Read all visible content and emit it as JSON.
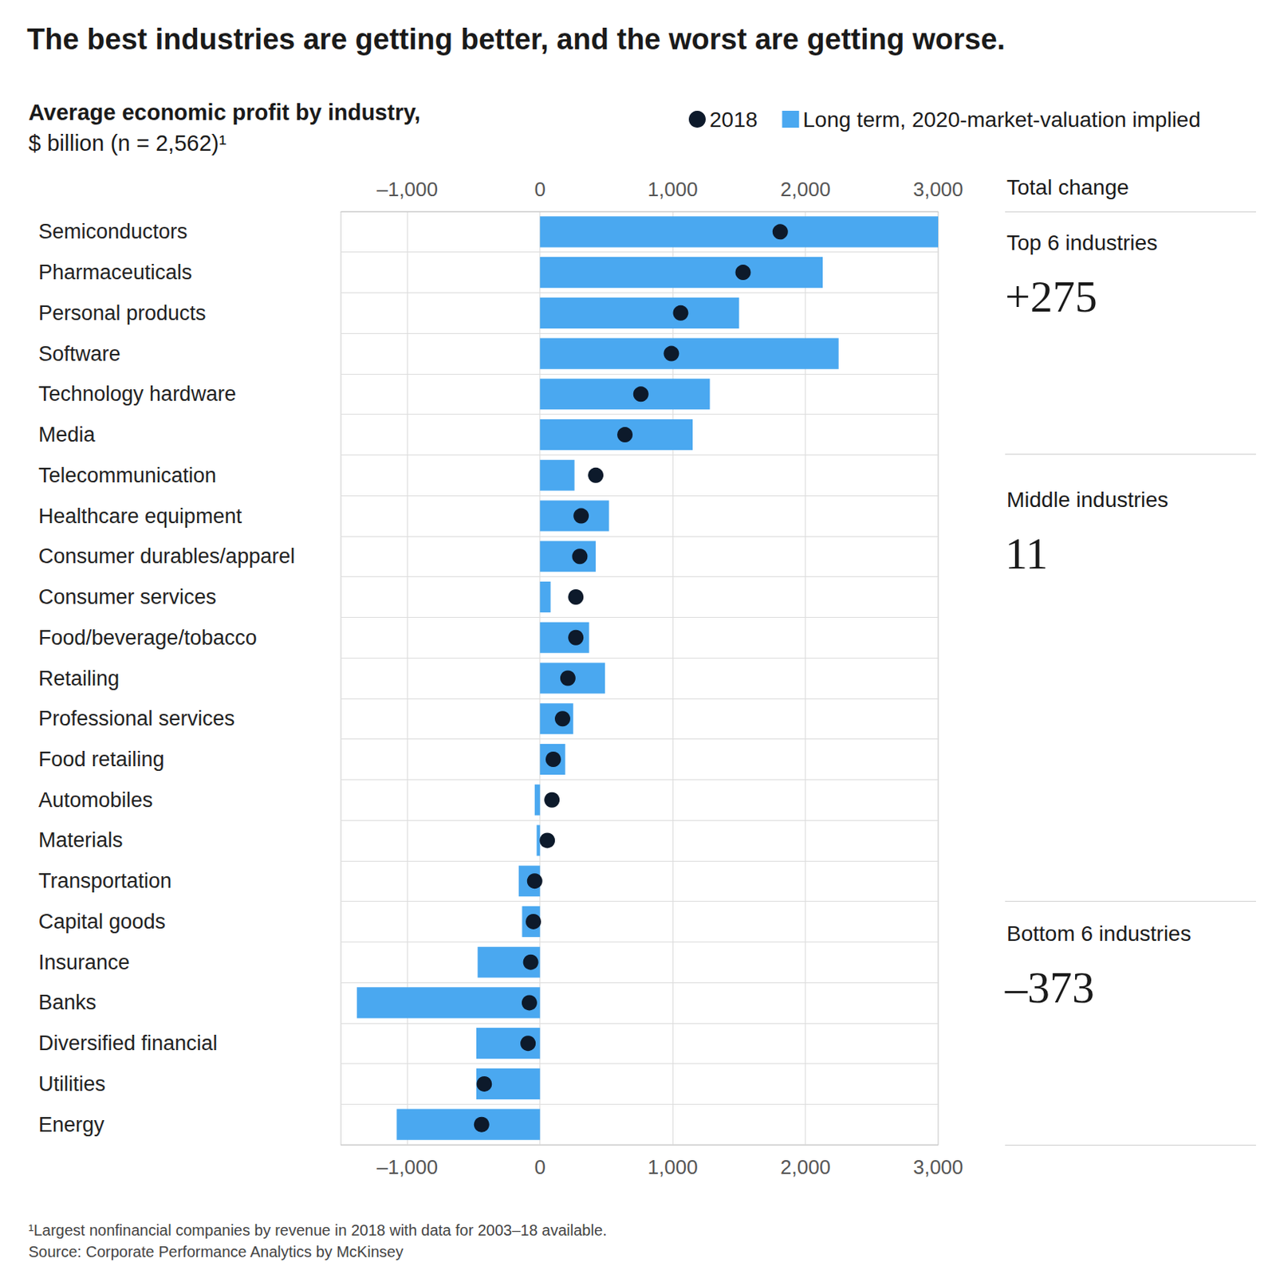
{
  "title": "The best industries are getting better, and the worst are getting worse.",
  "subtitle": "Average economic profit by industry,",
  "units": "$ billion (n = 2,562)¹",
  "annotations": {
    "header": "Total change",
    "groups": [
      {
        "label": "Top 6 industries",
        "value": "+275"
      },
      {
        "label": "Middle industries",
        "value": "11"
      },
      {
        "label": "Bottom 6 industries",
        "value": "–373"
      }
    ]
  },
  "footnotes": [
    "¹Largest nonfinancial companies by revenue in 2018 with data for 2003–18 available.",
    "Source: Corporate Performance Analytics by McKinsey"
  ],
  "chart_data": {
    "type": "bar",
    "orientation": "horizontal",
    "grid": true,
    "legend": "top-right",
    "categories": [
      "Semiconductors",
      "Pharmaceuticals",
      "Personal products",
      "Software",
      "Technology hardware",
      "Media",
      "Telecommunication",
      "Healthcare equipment",
      "Consumer durables/apparel",
      "Consumer services",
      "Food/beverage/tobacco",
      "Retailing",
      "Professional services",
      "Food retailing",
      "Automobiles",
      "Materials",
      "Transportation",
      "Capital goods",
      "Insurance",
      "Banks",
      "Diversified financial",
      "Utilities",
      "Energy"
    ],
    "series": [
      {
        "name": "2018",
        "type": "scatter",
        "marker": "circle",
        "color": "#0d1a2b",
        "values": [
          1810,
          1530,
          1060,
          990,
          760,
          640,
          420,
          310,
          300,
          270,
          270,
          210,
          170,
          100,
          90,
          55,
          -40,
          -50,
          -70,
          -80,
          -90,
          -420,
          -440
        ]
      },
      {
        "name": "Long term, 2020-market-valuation implied",
        "type": "bar",
        "color": "#4aa8f0",
        "values": [
          3000,
          2130,
          1500,
          2250,
          1280,
          1150,
          260,
          520,
          420,
          80,
          370,
          490,
          250,
          190,
          -40,
          -25,
          -160,
          -135,
          -470,
          -1380,
          -480,
          -480,
          -1080
        ]
      }
    ],
    "xlim": [
      -1500,
      3000
    ],
    "xticks": [
      {
        "value": -1000,
        "label": "–1,000"
      },
      0,
      {
        "value": 1000,
        "label": "1,000"
      },
      {
        "value": 2000,
        "label": "2,000"
      },
      {
        "value": 3000,
        "label": "3,000"
      }
    ]
  }
}
